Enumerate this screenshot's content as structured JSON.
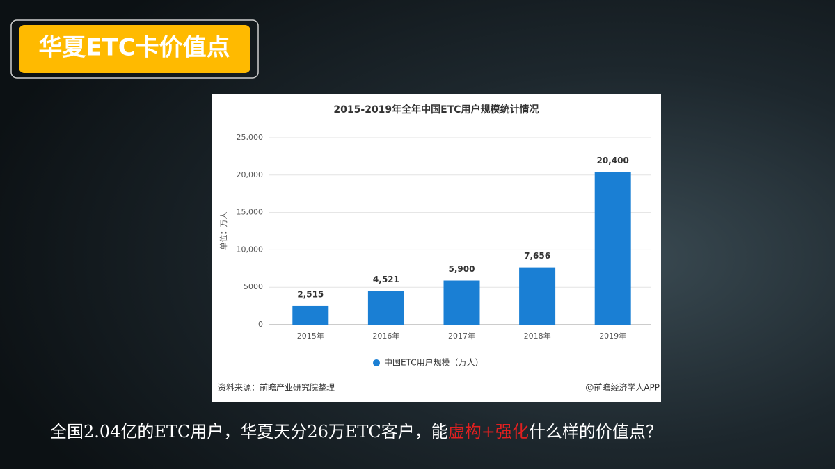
{
  "slide_title": "华夏ETC卡价值点",
  "chart_data": {
    "type": "bar",
    "title": "2015-2019年全年中国ETC用户规模统计情况",
    "y_label": "单位：万人",
    "categories": [
      "2015年",
      "2016年",
      "2017年",
      "2018年",
      "2019年"
    ],
    "series": [
      {
        "name": "中国ETC用户规模（万人）",
        "color": "#1a7fd4",
        "values": [
          2515,
          4521,
          5900,
          7656,
          20400
        ],
        "value_labels": [
          "2,515",
          "4,521",
          "5,900",
          "7,656",
          "20,400"
        ]
      }
    ],
    "ylim": [
      0,
      25000
    ],
    "yticks": [
      0,
      5000,
      {
        "value": 10000,
        "label": "10,000"
      },
      {
        "value": 15000,
        "label": "15,000"
      },
      {
        "value": 20000,
        "label": "20,000"
      },
      {
        "value": 25000,
        "label": "25,000"
      }
    ],
    "grid": true,
    "source": "资料来源：前瞻产业研究院整理",
    "credit": "@前瞻经济学人APP"
  },
  "caption": [
    "全国2.04亿的ETC用户，华夏天分26万ETC客户，能",
    "虚构+强化",
    "什么样的价值点？"
  ]
}
